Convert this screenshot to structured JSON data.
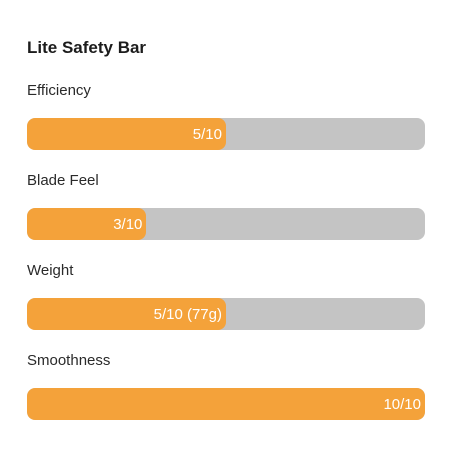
{
  "card": {
    "title": "Lite Safety Bar",
    "metrics": [
      {
        "label": "Efficiency",
        "value_text": "5/10",
        "level": 0.5
      },
      {
        "label": "Blade Feel",
        "value_text": "3/10",
        "level": 0.3
      },
      {
        "label": "Weight",
        "value_text": "5/10 (77g)",
        "level": 0.5
      },
      {
        "label": "Smoothness",
        "value_text": "10/10",
        "level": 1.0
      }
    ]
  },
  "colors": {
    "fill": "#f4a23a",
    "track": "#c4c4c4",
    "value_text": "#ffffff"
  }
}
